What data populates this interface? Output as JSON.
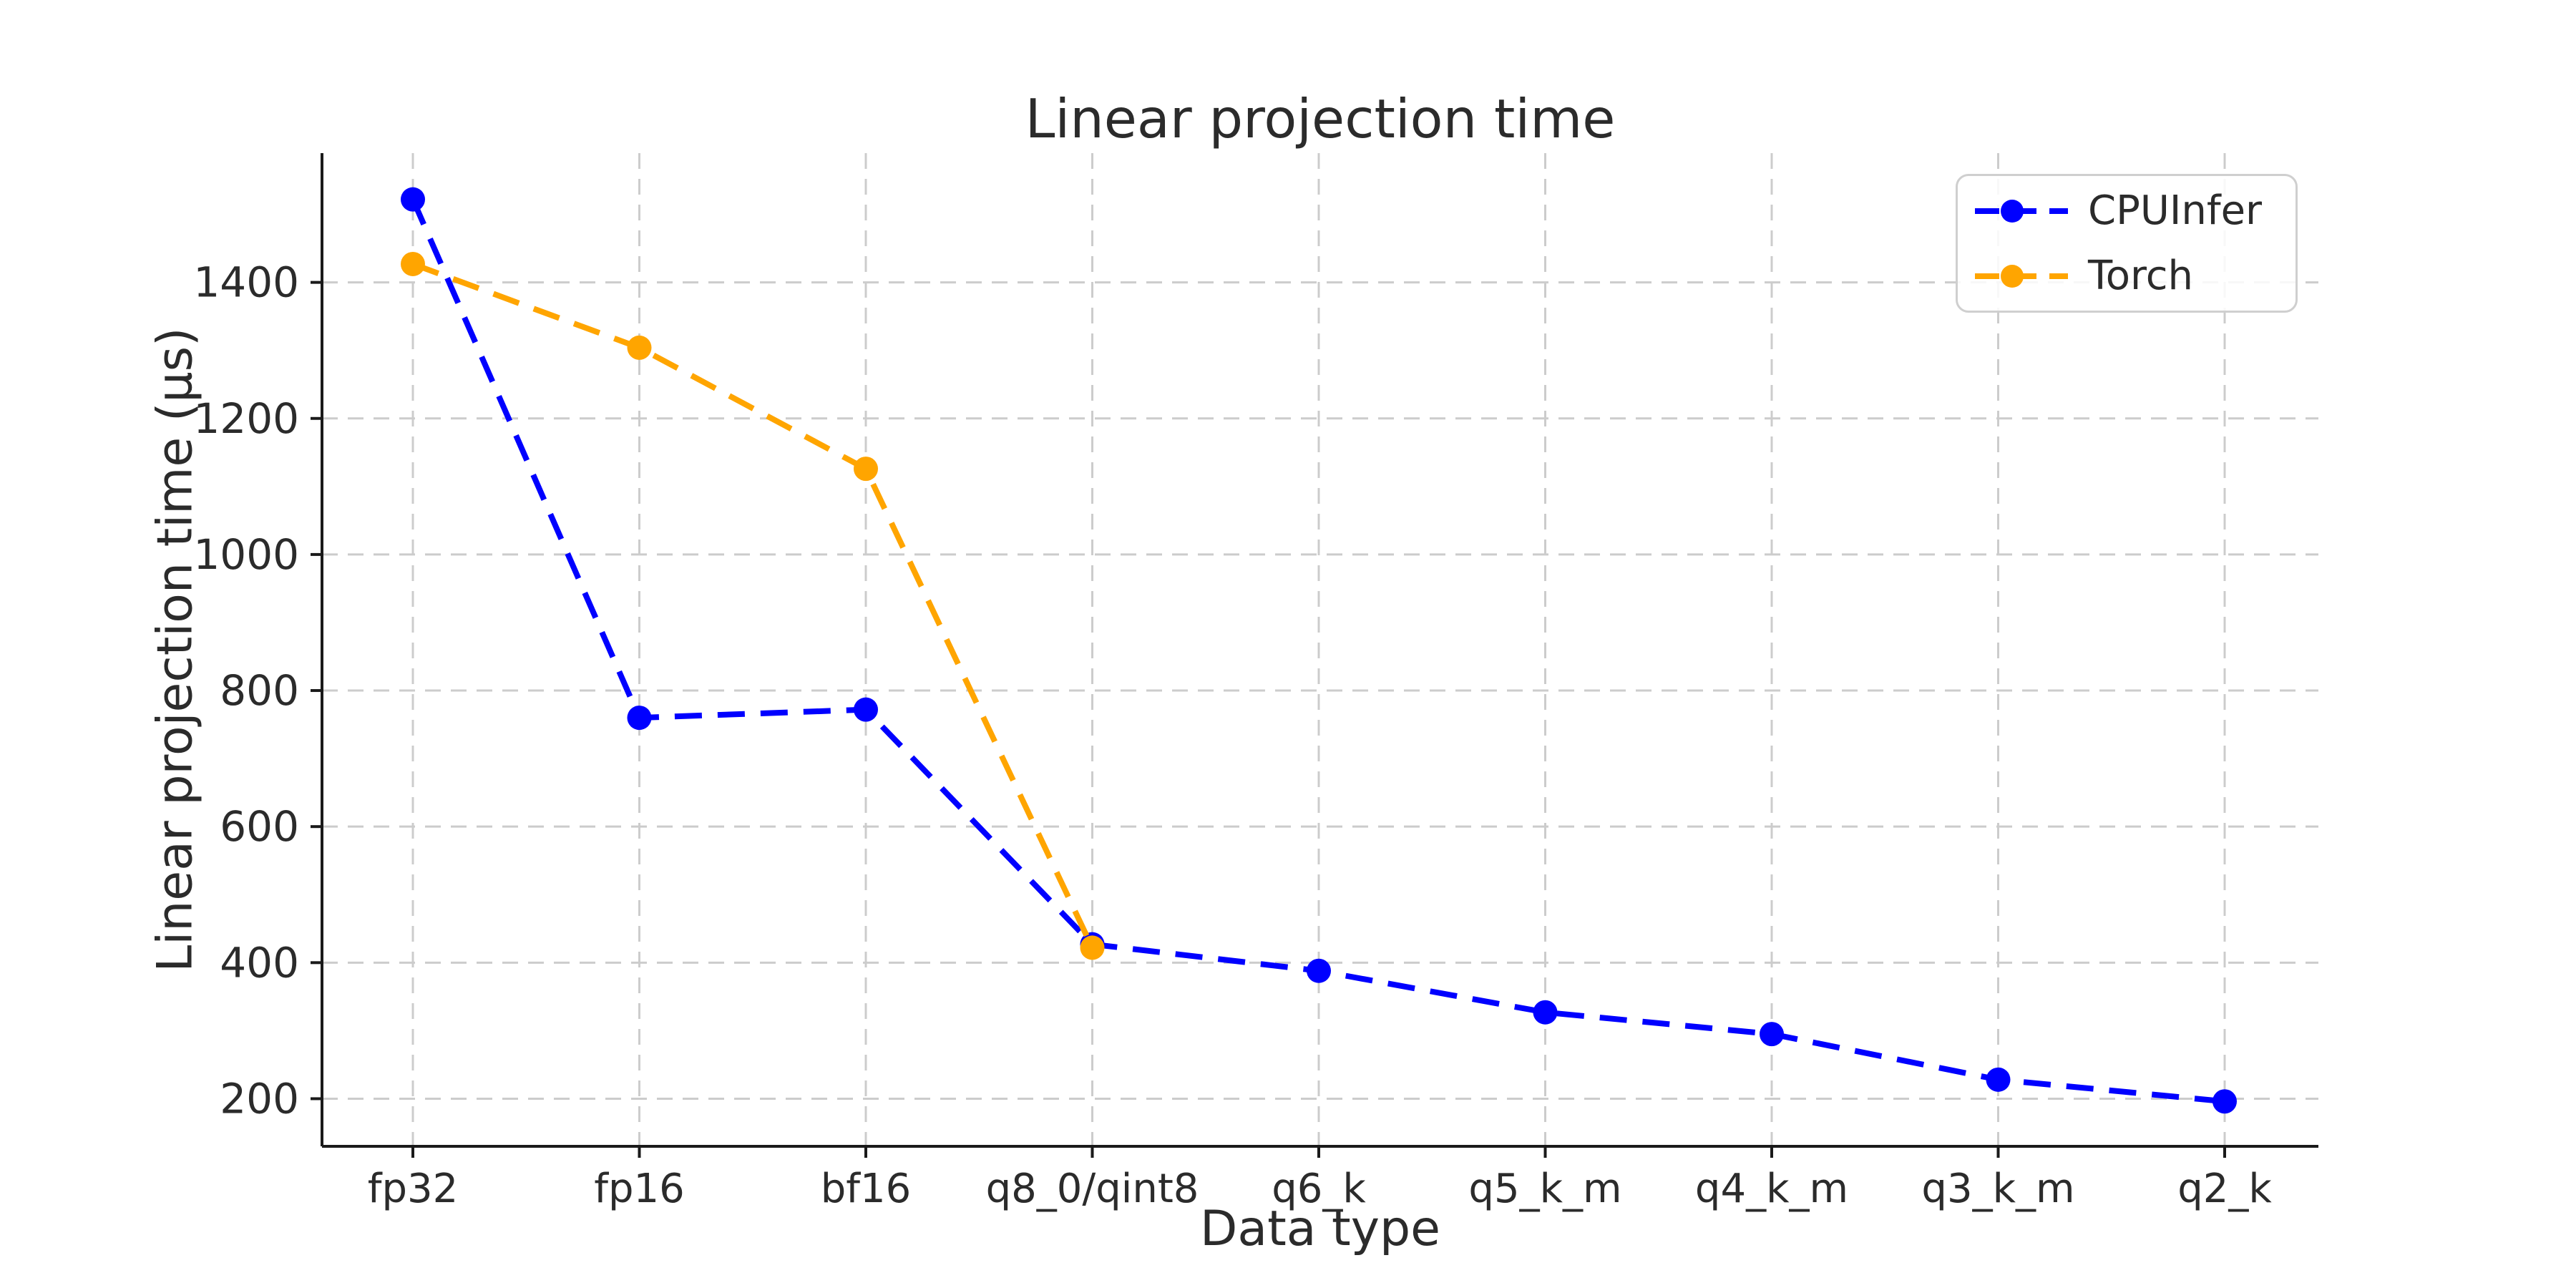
{
  "title": "Linear projection time",
  "axes": {
    "x_label": "Data type",
    "y_label": "Linear projection time (µs)"
  },
  "legend": {
    "position": "upper right",
    "entries": [
      "CPUInfer",
      "Torch"
    ]
  },
  "colors": {
    "cpuinfer": "#0000FF",
    "torch": "#FFA500",
    "grid": "#cccccc",
    "axis": "#1a1a1a",
    "text": "#2b2b2b",
    "legend_border": "#cfcfcf"
  },
  "chart_data": {
    "type": "line",
    "title": "Linear projection time",
    "xlabel": "Data type",
    "ylabel": "Linear projection time (µs)",
    "categories": [
      "fp32",
      "fp16",
      "bf16",
      "q8_0/qint8",
      "q6_k",
      "q5_k_m",
      "q4_k_m",
      "q3_k_m",
      "q2_k"
    ],
    "series": [
      {
        "name": "CPUInfer",
        "color": "#0000FF",
        "values": [
          1522,
          760,
          772,
          427,
          388,
          327,
          295,
          228,
          196
        ]
      },
      {
        "name": "Torch",
        "color": "#FFA500",
        "values": [
          1427,
          1304,
          1126,
          422
        ]
      }
    ],
    "ylim": [
      130,
      1590
    ],
    "yticks": [
      200,
      400,
      600,
      800,
      1000,
      1200,
      1400
    ],
    "grid": true,
    "grid_style": "dashed",
    "line_style": "dashed",
    "marker": "circle",
    "legend_position": "upper right"
  }
}
